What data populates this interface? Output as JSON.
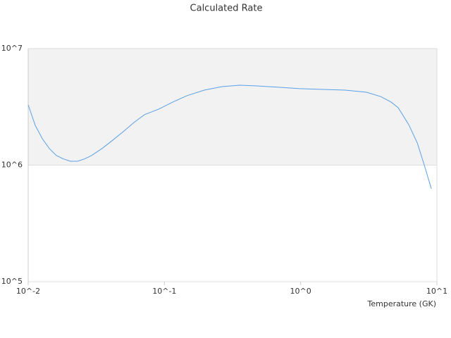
{
  "chart_data": {
    "type": "line",
    "title": "Calculated Rate",
    "x_label": "Temperature (GK)",
    "log_x": true,
    "log_y": true,
    "color": "#5aa0e6",
    "band_color": "#f2f2f2",
    "grid": true,
    "x": [
      0.01,
      0.01127,
      0.01268,
      0.01428,
      0.0161,
      0.01814,
      0.0204,
      0.023,
      0.0259,
      0.0292,
      0.0349,
      0.0418,
      0.0499,
      0.0597,
      0.0714,
      0.0906,
      0.1148,
      0.146,
      0.196,
      0.265,
      0.357,
      0.48,
      0.687,
      0.982,
      1.4,
      2.13,
      3.04,
      3.86,
      4.62,
      5.2,
      6.22,
      7.18,
      8.08,
      9.1
    ],
    "values": [
      3290000,
      2190000,
      1690000,
      1390000,
      1210000,
      1130000,
      1080000,
      1080000,
      1130000,
      1210000,
      1390000,
      1640000,
      1940000,
      2320000,
      2710000,
      3020000,
      3470000,
      3940000,
      4400000,
      4720000,
      4850000,
      4780000,
      4660000,
      4530000,
      4470000,
      4400000,
      4220000,
      3880000,
      3470000,
      3110000,
      2220000,
      1550000,
      1000000,
      628000
    ],
    "xlim": [
      0.01,
      10
    ],
    "ylim": [
      100000,
      10000000
    ],
    "xticks": [
      {
        "value": 0.01,
        "label": "10^-2"
      },
      {
        "value": 0.1,
        "label": "10^-1"
      },
      {
        "value": 1,
        "label": "10^0"
      },
      {
        "value": 10,
        "label": "10^1"
      }
    ],
    "yticks": [
      {
        "value": 100000,
        "label": "10^5"
      },
      {
        "value": 1000000,
        "label": "10^6"
      },
      {
        "value": 10000000,
        "label": "10^7"
      }
    ]
  }
}
